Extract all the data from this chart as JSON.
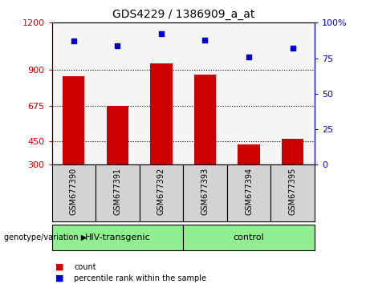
{
  "title": "GDS4229 / 1386909_a_at",
  "samples": [
    "GSM677390",
    "GSM677391",
    "GSM677392",
    "GSM677393",
    "GSM677394",
    "GSM677395"
  ],
  "counts": [
    860,
    675,
    940,
    870,
    430,
    462
  ],
  "percentiles": [
    87,
    84,
    92,
    88,
    76,
    82
  ],
  "y_min": 300,
  "y_max": 1200,
  "y_ticks_left": [
    300,
    450,
    675,
    900,
    1200
  ],
  "y_ticks_right": [
    0,
    25,
    50,
    75,
    100
  ],
  "bar_color": "#cc0000",
  "dot_color": "#0000cc",
  "bg_group": "#90ee90",
  "bg_label": "#d3d3d3",
  "legend_items": [
    {
      "color": "#cc0000",
      "label": "count"
    },
    {
      "color": "#0000cc",
      "label": "percentile rank within the sample"
    }
  ]
}
